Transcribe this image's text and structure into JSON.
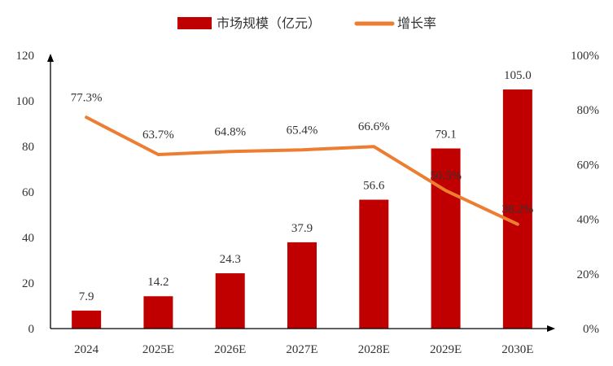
{
  "chart_data": {
    "type": "bar",
    "categories": [
      "2024",
      "2025E",
      "2026E",
      "2027E",
      "2028E",
      "2029E",
      "2030E"
    ],
    "series": [
      {
        "name": "市场规模（亿元）",
        "type": "bar",
        "axis": "left",
        "values": [
          7.9,
          14.2,
          24.3,
          37.9,
          56.6,
          79.1,
          105.0
        ],
        "labels": [
          "7.9",
          "14.2",
          "24.3",
          "37.9",
          "56.6",
          "79.1",
          "105.0"
        ],
        "color": "#c00000"
      },
      {
        "name": "增长率",
        "type": "line",
        "axis": "right",
        "values": [
          77.3,
          63.7,
          64.8,
          65.4,
          66.6,
          50.5,
          38.2
        ],
        "labels": [
          "77.3%",
          "63.7%",
          "64.8%",
          "65.4%",
          "66.6%",
          "50.5%",
          "38.2%"
        ],
        "color": "#ed7d31"
      }
    ],
    "y_left": {
      "min": 0,
      "max": 120,
      "ticks": [
        "0",
        "20",
        "40",
        "60",
        "80",
        "100",
        "120"
      ]
    },
    "y_right": {
      "min": 0,
      "max": 100,
      "ticks": [
        "0%",
        "20%",
        "40%",
        "60%",
        "80%",
        "100%"
      ]
    },
    "legend": "top-center",
    "grid": false
  }
}
